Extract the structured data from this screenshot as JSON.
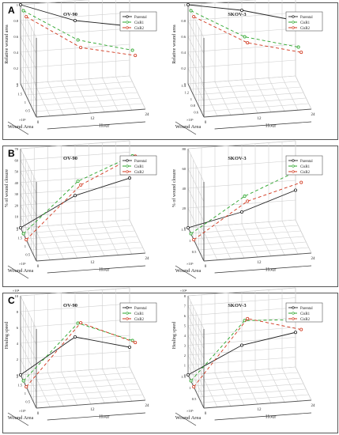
{
  "panels": [
    {
      "letter": "A"
    },
    {
      "letter": "B"
    },
    {
      "letter": "C"
    }
  ],
  "colors": {
    "parental": "#222222",
    "csr1": "#2aa52a",
    "csr2": "#d0341a",
    "grid": "#cfcfcf",
    "frame": "#555555"
  },
  "chart_data": [
    {
      "type": "line",
      "panel": "A",
      "title": "OV-90",
      "ylabel": "Relative wound area",
      "xlabel_depth": "Wound Area",
      "xlabel_hour": "Hour",
      "hour_ticks": [
        "0",
        "12",
        "24"
      ],
      "area_ticks": [
        "2",
        "1.5",
        "1",
        "0.5"
      ],
      "area_exponent": "×10⁶",
      "y_ticks": [
        "0",
        "0.2",
        "0.4",
        "0.6",
        "0.8",
        "1"
      ],
      "ylim": [
        0,
        1
      ],
      "legend": [
        "Parental",
        "CisR1",
        "CisR2"
      ],
      "legend_placement": "top-right",
      "grid": true,
      "series": [
        {
          "name": "Parental",
          "x": [
            0,
            12,
            24
          ],
          "y": [
            1,
            0.75,
            0.63
          ]
        },
        {
          "name": "CisR1",
          "x": [
            0,
            12,
            24
          ],
          "y": [
            1,
            0.58,
            0.4
          ]
        },
        {
          "name": "CisR2",
          "x": [
            0,
            12,
            24
          ],
          "y": [
            1,
            0.56,
            0.41
          ]
        }
      ]
    },
    {
      "type": "line",
      "panel": "A",
      "title": "SKOV-3",
      "ylabel": "Relative wound area",
      "xlabel_depth": "Wound Area",
      "xlabel_hour": "Hour",
      "hour_ticks": [
        "0",
        "12",
        "24"
      ],
      "area_ticks": [
        "1.4",
        "1.2",
        "1",
        "0.8",
        "0.6"
      ],
      "area_exponent": "×10⁶",
      "y_ticks": [
        "0",
        "0.2",
        "0.4",
        "0.6",
        "0.8",
        "1"
      ],
      "ylim": [
        0,
        1
      ],
      "legend": [
        "Parental",
        "CisR1",
        "CisR2"
      ],
      "legend_placement": "top-right",
      "grid": true,
      "series": [
        {
          "name": "Parental",
          "x": [
            0,
            12,
            24
          ],
          "y": [
            1,
            0.88,
            0.7
          ]
        },
        {
          "name": "CisR1",
          "x": [
            0,
            12,
            24
          ],
          "y": [
            1,
            0.62,
            0.44
          ]
        },
        {
          "name": "CisR2",
          "x": [
            0,
            12,
            24
          ],
          "y": [
            1,
            0.62,
            0.45
          ]
        }
      ]
    },
    {
      "type": "line",
      "panel": "B",
      "title": "OV-90",
      "ylabel": "% of wound closure",
      "xlabel_depth": "Wound Area",
      "xlabel_hour": "Hour",
      "hour_ticks": [
        "0",
        "12",
        "24"
      ],
      "area_ticks": [
        "2",
        "1.5",
        "1",
        "0.5"
      ],
      "area_exponent": "×10⁶",
      "y_ticks": [
        "0",
        "10",
        "20",
        "30",
        "40",
        "50",
        "60",
        "70"
      ],
      "ylim": [
        0,
        70
      ],
      "legend": [
        "Parental",
        "CisR1",
        "CisR2"
      ],
      "legend_placement": "top-right",
      "grid": true,
      "series": [
        {
          "name": "Parental",
          "x": [
            0,
            12,
            24
          ],
          "y": [
            0,
            25,
            37
          ]
        },
        {
          "name": "CisR1",
          "x": [
            0,
            12,
            24
          ],
          "y": [
            0,
            43,
            62
          ]
        },
        {
          "name": "CisR2",
          "x": [
            0,
            12,
            24
          ],
          "y": [
            0,
            45,
            67
          ]
        }
      ]
    },
    {
      "type": "line",
      "panel": "B",
      "title": "SKOV-3",
      "ylabel": "% of wound closure",
      "xlabel_depth": "Wound Area",
      "xlabel_hour": "Hour",
      "hour_ticks": [
        "0",
        "12",
        "24"
      ],
      "area_ticks": [
        "1.5",
        "1",
        "0.5"
      ],
      "area_exponent": "×10⁶",
      "y_ticks": [
        "0",
        "20",
        "40",
        "60",
        "80"
      ],
      "ylim": [
        0,
        80
      ],
      "legend": [
        "Parental",
        "CisR1",
        "CisR2"
      ],
      "legend_placement": "top-right",
      "grid": true,
      "series": [
        {
          "name": "Parental",
          "x": [
            0,
            12,
            24
          ],
          "y": [
            0,
            12,
            30
          ]
        },
        {
          "name": "CisR1",
          "x": [
            0,
            12,
            24
          ],
          "y": [
            0,
            34,
            56
          ]
        },
        {
          "name": "CisR2",
          "x": [
            0,
            12,
            24
          ],
          "y": [
            0,
            35,
            50
          ]
        }
      ]
    },
    {
      "type": "line",
      "panel": "C",
      "title": "OV-90",
      "ylabel": "Healing speed",
      "xlabel_depth": "Wound Area",
      "xlabel_hour": "Hour",
      "hour_ticks": [
        "0",
        "12",
        "24"
      ],
      "area_ticks": [
        "2",
        "1.5",
        "1",
        "0.5"
      ],
      "area_exponent": "×10⁵",
      "y_ticks": [
        "0",
        "2",
        "4",
        "6",
        "8",
        "10"
      ],
      "y_exponent": "×10⁴",
      "ylim": [
        0,
        10
      ],
      "legend": [
        "Parental",
        "CisR1",
        "CisR2"
      ],
      "legend_placement": "top-right",
      "grid": true,
      "series": [
        {
          "name": "Parental",
          "x": [
            0,
            12,
            24
          ],
          "y": [
            0,
            4.3,
            2.5
          ]
        },
        {
          "name": "CisR1",
          "x": [
            0,
            12,
            24
          ],
          "y": [
            0,
            6.8,
            4.1
          ]
        },
        {
          "name": "CisR2",
          "x": [
            0,
            12,
            24
          ],
          "y": [
            0,
            7.6,
            4.6
          ]
        }
      ]
    },
    {
      "type": "line",
      "panel": "C",
      "title": "SKOV-3",
      "ylabel": "Healing speed",
      "xlabel_depth": "Wound Area",
      "xlabel_hour": "Hour",
      "hour_ticks": [
        "0",
        "12",
        "24"
      ],
      "area_ticks": [
        "1.5",
        "1",
        "0.5"
      ],
      "area_exponent": "×10⁵",
      "y_ticks": [
        "0",
        "1",
        "2",
        "3",
        "4",
        "5",
        "6",
        "7",
        "8"
      ],
      "y_exponent": "×10⁴",
      "ylim": [
        0,
        8
      ],
      "legend": [
        "Parental",
        "CisR1",
        "CisR2"
      ],
      "legend_placement": "top-right",
      "grid": true,
      "series": [
        {
          "name": "Parental",
          "x": [
            0,
            12,
            24
          ],
          "y": [
            0,
            2.6,
            3.5
          ]
        },
        {
          "name": "CisR1",
          "x": [
            0,
            12,
            24
          ],
          "y": [
            0,
            5.7,
            5.4
          ]
        },
        {
          "name": "CisR2",
          "x": [
            0,
            12,
            24
          ],
          "y": [
            0,
            6.5,
            5.0
          ]
        }
      ]
    }
  ]
}
